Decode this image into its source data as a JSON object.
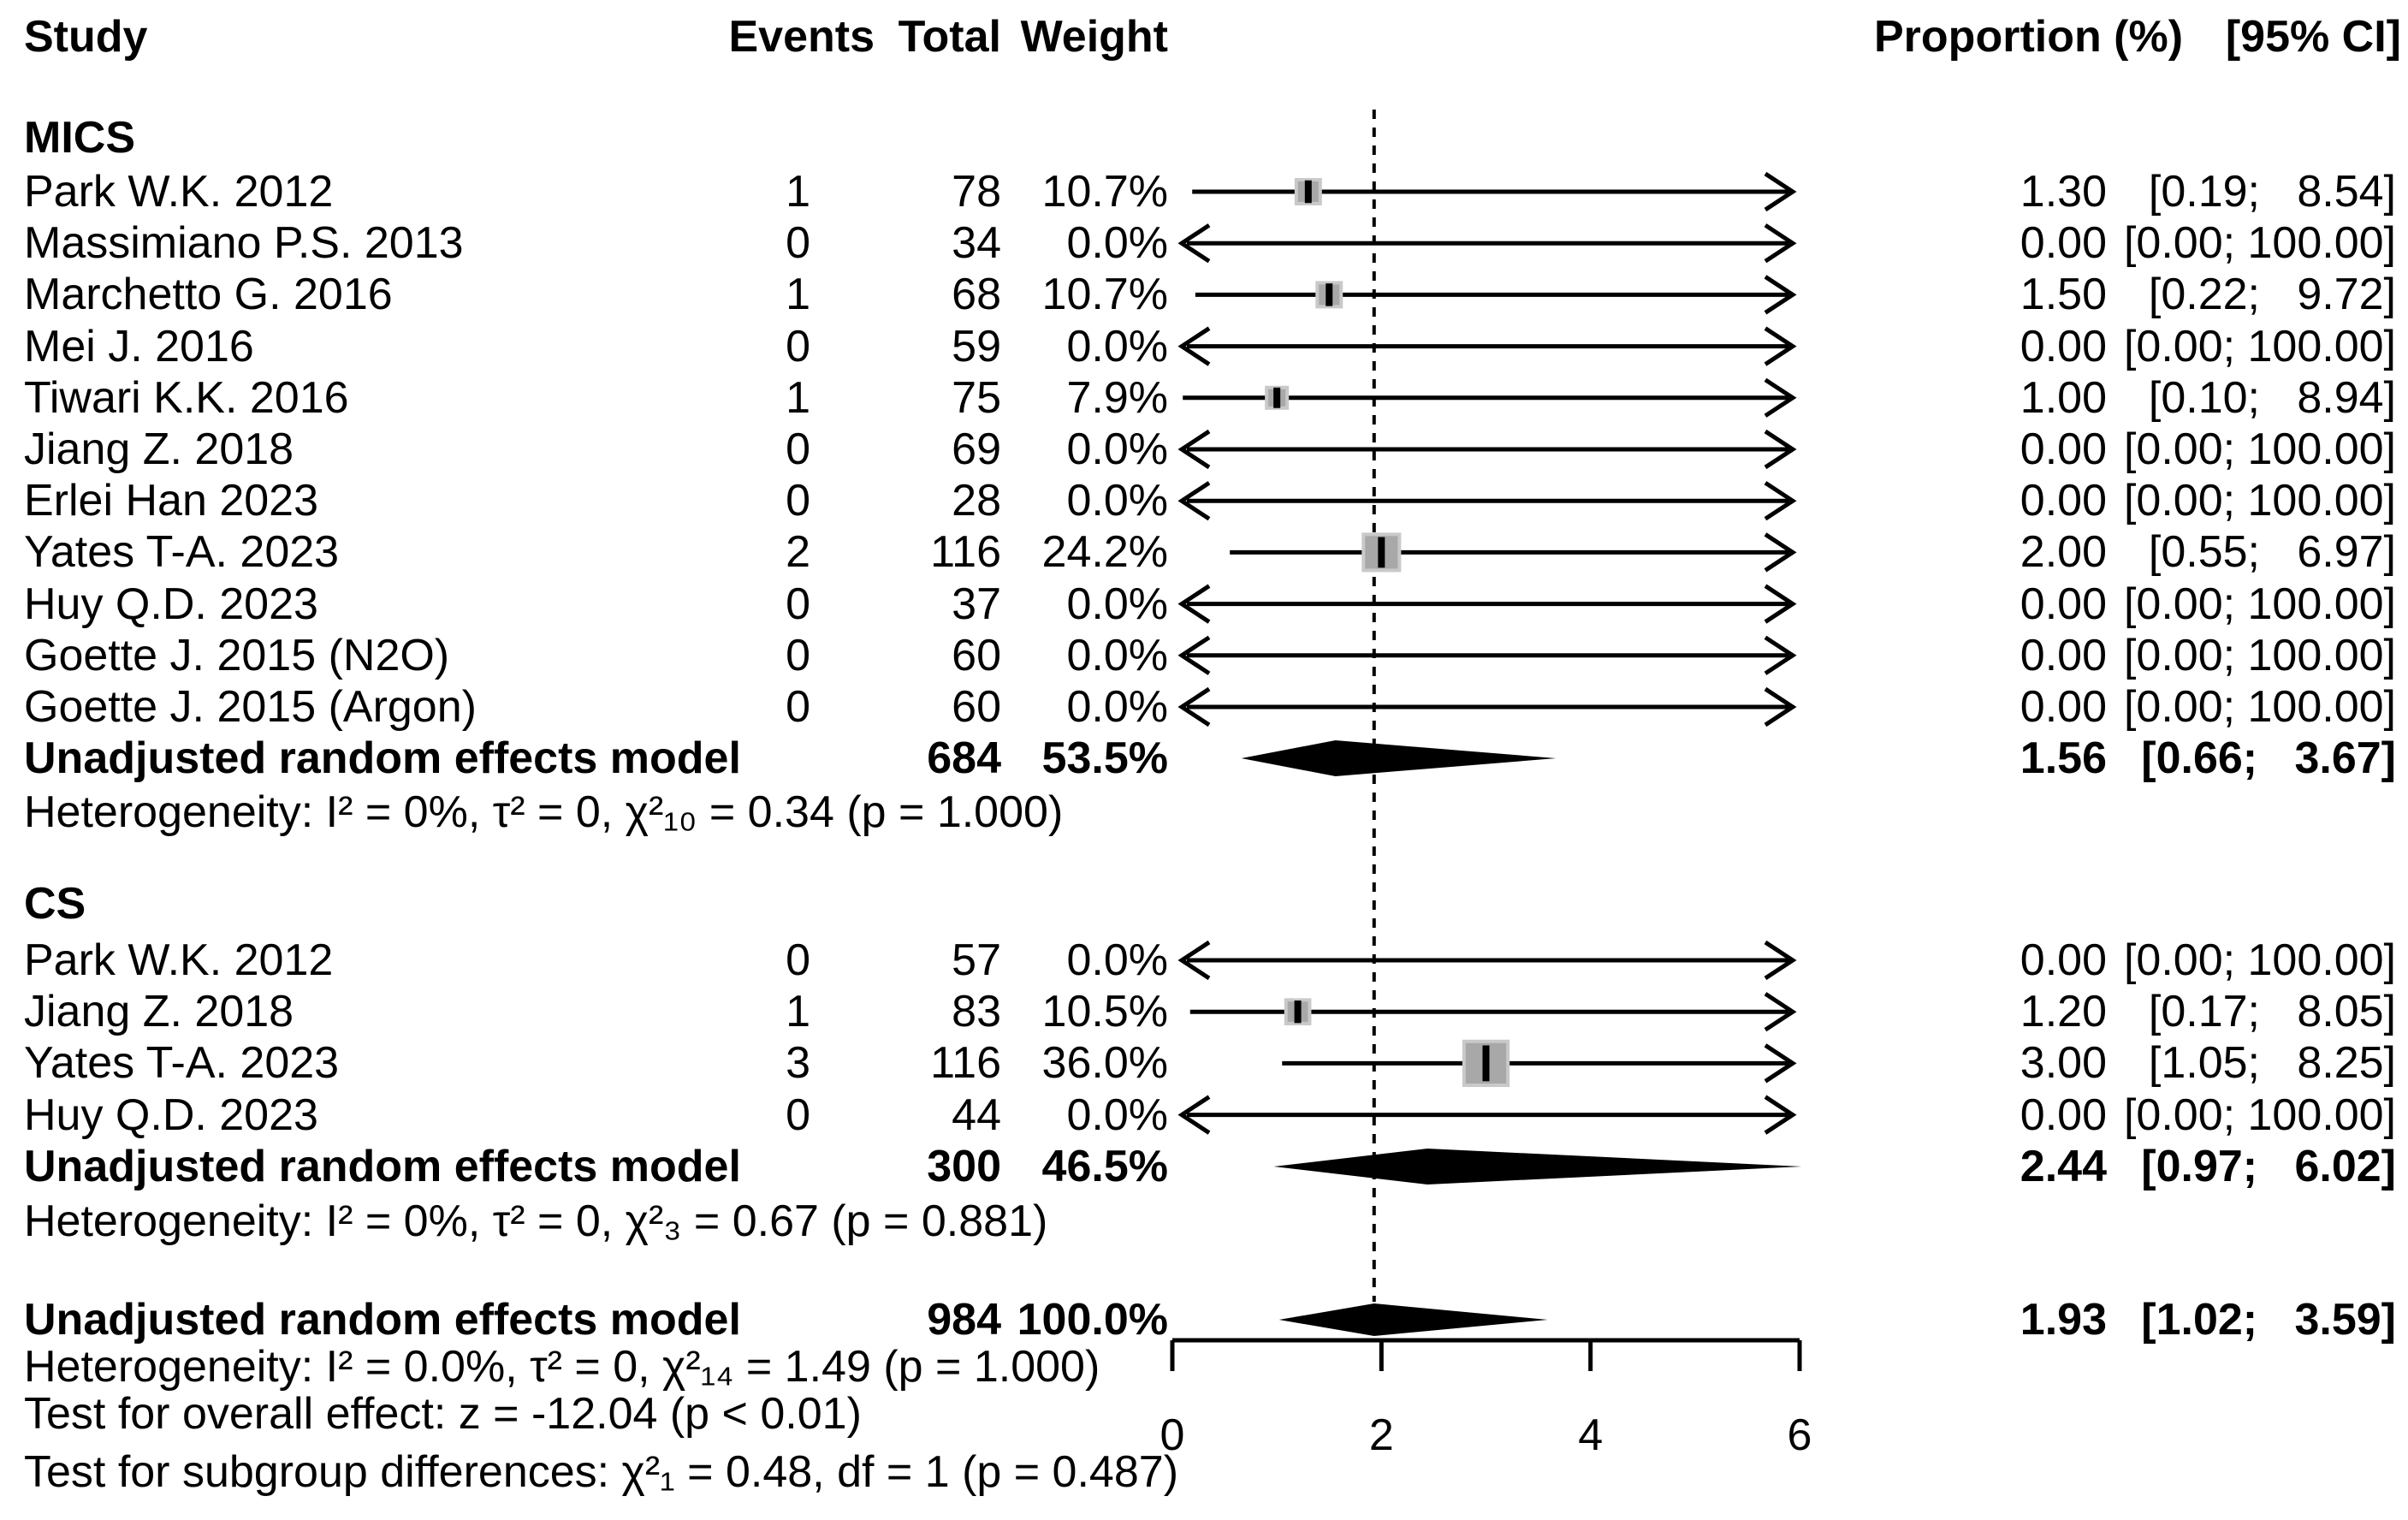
{
  "header": {
    "study": "Study",
    "events": "Events",
    "total": "Total",
    "weight": "Weight",
    "proportion": "Proportion (%)",
    "ci": "[95% CI]"
  },
  "chart_data": {
    "type": "forest",
    "xlabel": "",
    "axis": {
      "ticks": [
        0,
        2,
        4,
        6
      ],
      "min": 0,
      "max": 6
    },
    "ref_line_value": 1.93,
    "groups": [
      {
        "label": "MICS",
        "studies": [
          {
            "study": "Park W.K. 2012",
            "events": "1",
            "total": "78",
            "weight": "10.7%",
            "proportion": "1.30",
            "ci": "[0.19;   8.54]",
            "est": 1.3,
            "lo": 0.19,
            "hi": 8.54,
            "weight_value": 10.7
          },
          {
            "study": "Massimiano P.S. 2013",
            "events": "0",
            "total": "34",
            "weight": "0.0%",
            "proportion": "0.00",
            "ci": "[0.00; 100.00]",
            "est": 0,
            "lo": 0,
            "hi": 100,
            "weight_value": 0
          },
          {
            "study": "Marchetto G. 2016",
            "events": "1",
            "total": "68",
            "weight": "10.7%",
            "proportion": "1.50",
            "ci": "[0.22;   9.72]",
            "est": 1.5,
            "lo": 0.22,
            "hi": 9.72,
            "weight_value": 10.7
          },
          {
            "study": "Mei J. 2016",
            "events": "0",
            "total": "59",
            "weight": "0.0%",
            "proportion": "0.00",
            "ci": "[0.00; 100.00]",
            "est": 0,
            "lo": 0,
            "hi": 100,
            "weight_value": 0
          },
          {
            "study": "Tiwari K.K. 2016",
            "events": "1",
            "total": "75",
            "weight": "7.9%",
            "proportion": "1.00",
            "ci": "[0.10;   8.94]",
            "est": 1.0,
            "lo": 0.1,
            "hi": 8.94,
            "weight_value": 7.9
          },
          {
            "study": "Jiang Z. 2018",
            "events": "0",
            "total": "69",
            "weight": "0.0%",
            "proportion": "0.00",
            "ci": "[0.00; 100.00]",
            "est": 0,
            "lo": 0,
            "hi": 100,
            "weight_value": 0
          },
          {
            "study": "Erlei Han 2023",
            "events": "0",
            "total": "28",
            "weight": "0.0%",
            "proportion": "0.00",
            "ci": "[0.00; 100.00]",
            "est": 0,
            "lo": 0,
            "hi": 100,
            "weight_value": 0
          },
          {
            "study": "Yates T-A. 2023",
            "events": "2",
            "total": "116",
            "weight": "24.2%",
            "proportion": "2.00",
            "ci": "[0.55;   6.97]",
            "est": 2.0,
            "lo": 0.55,
            "hi": 6.97,
            "weight_value": 24.2
          },
          {
            "study": "Huy Q.D. 2023",
            "events": "0",
            "total": "37",
            "weight": "0.0%",
            "proportion": "0.00",
            "ci": "[0.00; 100.00]",
            "est": 0,
            "lo": 0,
            "hi": 100,
            "weight_value": 0
          },
          {
            "study": "Goette J. 2015 (N2O)",
            "events": "0",
            "total": "60",
            "weight": "0.0%",
            "proportion": "0.00",
            "ci": "[0.00; 100.00]",
            "est": 0,
            "lo": 0,
            "hi": 100,
            "weight_value": 0
          },
          {
            "study": "Goette J. 2015 (Argon)",
            "events": "0",
            "total": "60",
            "weight": "0.0%",
            "proportion": "0.00",
            "ci": "[0.00; 100.00]",
            "est": 0,
            "lo": 0,
            "hi": 100,
            "weight_value": 0
          }
        ],
        "pooled": {
          "label": "Unadjusted random effects model",
          "total": "684",
          "weight": "53.5%",
          "proportion": "1.56",
          "ci": "[0.66;   3.67]",
          "est": 1.56,
          "lo": 0.66,
          "hi": 3.67
        },
        "heterogeneity": "Heterogeneity: I² = 0%, τ² = 0, χ²₁₀ = 0.34 (p = 1.000)"
      },
      {
        "label": "CS",
        "studies": [
          {
            "study": "Park W.K. 2012",
            "events": "0",
            "total": "57",
            "weight": "0.0%",
            "proportion": "0.00",
            "ci": "[0.00; 100.00]",
            "est": 0,
            "lo": 0,
            "hi": 100,
            "weight_value": 0
          },
          {
            "study": "Jiang Z. 2018",
            "events": "1",
            "total": "83",
            "weight": "10.5%",
            "proportion": "1.20",
            "ci": "[0.17;   8.05]",
            "est": 1.2,
            "lo": 0.17,
            "hi": 8.05,
            "weight_value": 10.5
          },
          {
            "study": "Yates T-A. 2023",
            "events": "3",
            "total": "116",
            "weight": "36.0%",
            "proportion": "3.00",
            "ci": "[1.05;   8.25]",
            "est": 3.0,
            "lo": 1.05,
            "hi": 8.25,
            "weight_value": 36.0
          },
          {
            "study": "Huy Q.D. 2023",
            "events": "0",
            "total": "44",
            "weight": "0.0%",
            "proportion": "0.00",
            "ci": "[0.00; 100.00]",
            "est": 0,
            "lo": 0,
            "hi": 100,
            "weight_value": 0
          }
        ],
        "pooled": {
          "label": "Unadjusted random effects model",
          "total": "300",
          "weight": "46.5%",
          "proportion": "2.44",
          "ci": "[0.97;   6.02]",
          "est": 2.44,
          "lo": 0.97,
          "hi": 6.02
        },
        "heterogeneity": "Heterogeneity: I² = 0%, τ² = 0, χ²₃ = 0.67 (p = 0.881)"
      }
    ],
    "overall": {
      "label": "Unadjusted random effects model",
      "total": "984",
      "weight": "100.0%",
      "proportion": "1.93",
      "ci": "[1.02;   3.59]",
      "est": 1.93,
      "lo": 1.02,
      "hi": 3.59,
      "heterogeneity": "Heterogeneity: I² = 0.0%, τ² = 0, χ²₁₄ = 1.49 (p = 1.000)",
      "test_overall": "Test for overall effect: z = -12.04 (p < 0.01)",
      "test_subgroup": "Test for subgroup differences: χ²₁ = 0.48, df = 1 (p = 0.487)"
    }
  }
}
